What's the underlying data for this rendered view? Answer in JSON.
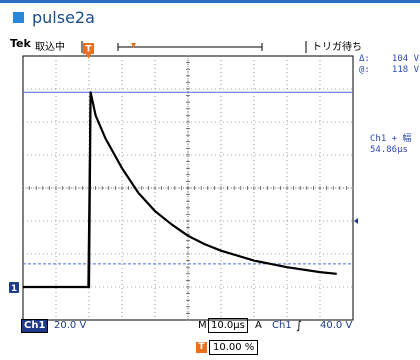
{
  "figure": {
    "title": "pulse2a"
  },
  "status": {
    "brand": "Tek",
    "acquisition": "取込中",
    "trigger_state": "トリガ待ち"
  },
  "cursors": {
    "delta_label": "Δ:",
    "delta_value": "104 V",
    "at_label": "@:",
    "at_value": "118 V"
  },
  "measurement": {
    "label": "Ch1 + 幅",
    "value": "54.86μs"
  },
  "channel": {
    "name": "Ch1",
    "scale": "20.0 V",
    "ground_marker": "1"
  },
  "timebase": {
    "mode": "M",
    "scale": "10.0μs"
  },
  "trigger": {
    "mode": "A",
    "source": "Ch1",
    "edge_symbol": "∫",
    "level": "40.0 V",
    "position": "10.00 %",
    "marker": "T"
  },
  "colors": {
    "accent": "#2a86d6",
    "title_text": "#1b4d86",
    "readout": "#2f4bb3",
    "cursor_line": "#4a6fe0",
    "trigger_marker": "#e8701f",
    "trace": "#000000"
  },
  "chart_data": {
    "type": "line",
    "x_divisions": 10,
    "y_divisions": 8,
    "series": [
      {
        "unit_x": "μs",
        "unit_y": "V",
        "x": [
          -20,
          -1,
          0,
          0.5,
          2,
          5,
          10,
          15,
          20,
          25,
          30,
          35,
          40,
          50,
          60,
          70,
          75
        ],
        "y": [
          0,
          0,
          0,
          118,
          104,
          90,
          72,
          57,
          46,
          38,
          31,
          26,
          22,
          16,
          12,
          9,
          8
        ]
      }
    ],
    "ylim": [
      -20,
      140
    ],
    "xlim": [
      -20,
      80
    ],
    "cursor_upper_v": 118,
    "cursor_lower_v": 14
  }
}
